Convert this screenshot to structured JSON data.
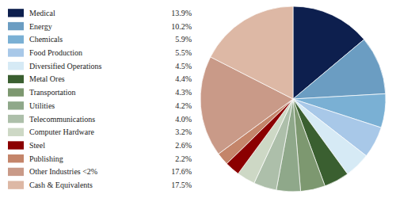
{
  "chart_data": {
    "type": "pie",
    "categories": [
      "Medical",
      "Energy",
      "Chemicals",
      "Food Production",
      "Diversified Operations",
      "Metal Ores",
      "Transportation",
      "Utilities",
      "Telecommunications",
      "Computer Hardware",
      "Steel",
      "Publishing",
      "Other Industries <2%",
      "Cash & Equivalents"
    ],
    "values": [
      13.9,
      10.2,
      5.9,
      5.5,
      4.5,
      4.4,
      4.3,
      4.2,
      4.0,
      3.2,
      2.6,
      2.2,
      17.6,
      17.5
    ],
    "value_labels": [
      "13.9%",
      "10.2%",
      "5.9%",
      "5.5%",
      "4.5%",
      "4.4%",
      "4.3%",
      "4.2%",
      "4.0%",
      "3.2%",
      "2.6%",
      "2.2%",
      "17.6%",
      "17.5%"
    ],
    "colors": [
      "#0d1f4e",
      "#6b9dc2",
      "#7ab0d4",
      "#a8c8e8",
      "#d6eaf5",
      "#3a5f30",
      "#7d9870",
      "#8fa88a",
      "#adbfaa",
      "#cdd8c5",
      "#8b0000",
      "#c4856a",
      "#c99a88",
      "#ddb8a5"
    ],
    "legend": "left"
  }
}
